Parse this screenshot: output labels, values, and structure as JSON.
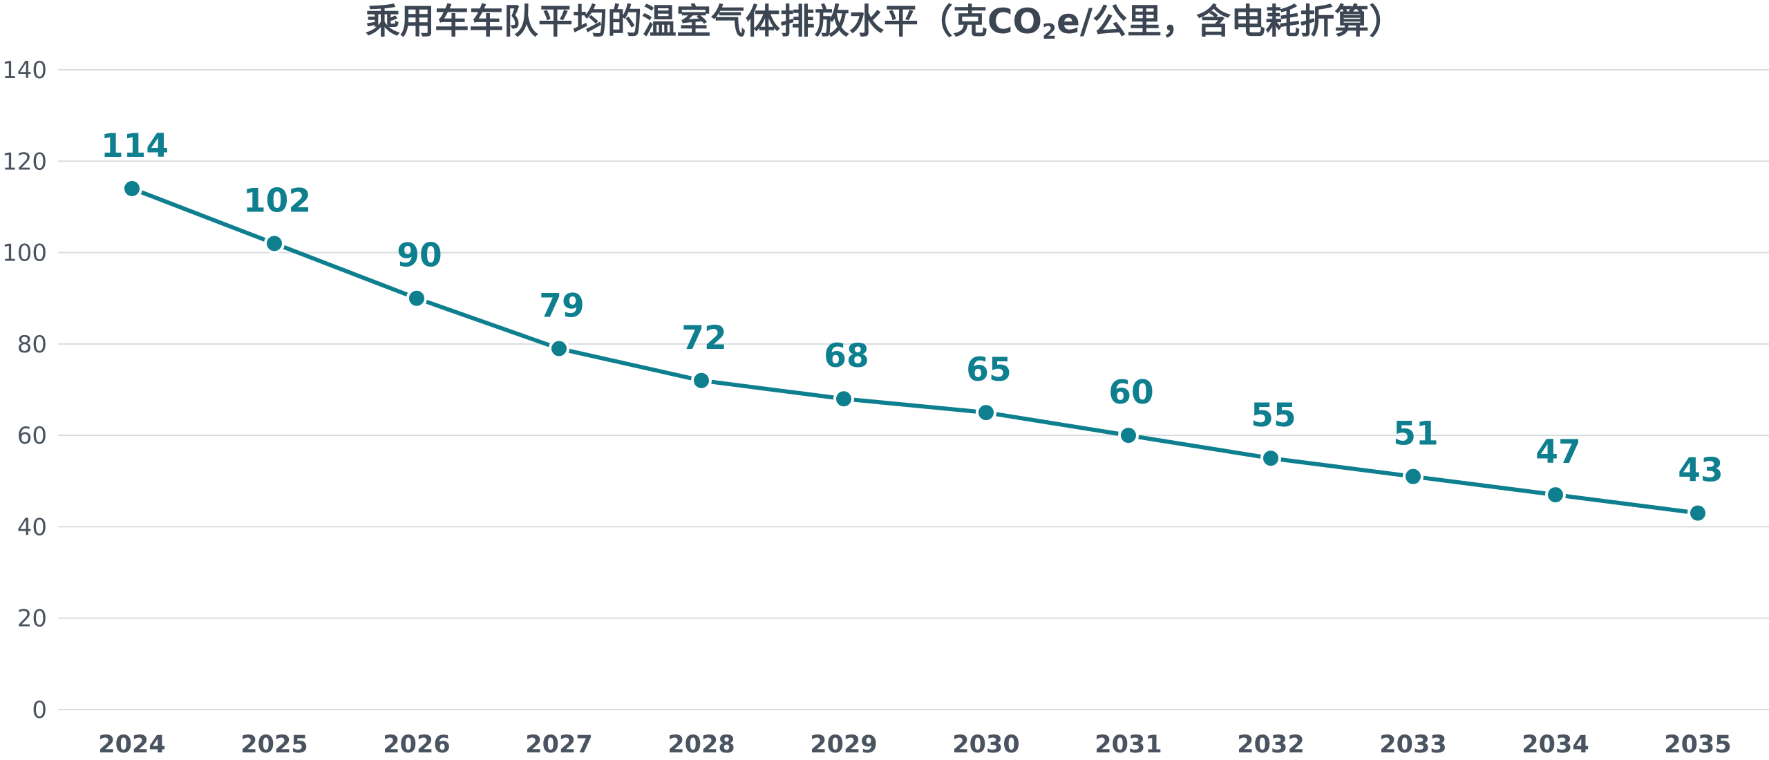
{
  "title": {
    "before": "乘用车车队平均的温室气体排放水平（克CO",
    "sub": "2",
    "after": "e/公里，含电耗折算）"
  },
  "chart_data": {
    "type": "line",
    "title": "乘用车车队平均的温室气体排放水平（克CO2e/公里，含电耗折算）",
    "xlabel": "",
    "ylabel": "",
    "x": [
      "2024",
      "2025",
      "2026",
      "2027",
      "2028",
      "2029",
      "2030",
      "2031",
      "2032",
      "2033",
      "2034",
      "2035"
    ],
    "series": [
      {
        "values": [
          114,
          102,
          90,
          79,
          72,
          68,
          65,
          60,
          55,
          51,
          47,
          43
        ],
        "color": "#0e7f8f"
      }
    ],
    "ylim": [
      0,
      140
    ],
    "yticks": [
      0,
      20,
      40,
      60,
      80,
      100,
      120,
      140
    ],
    "ytick_labels": [
      "0",
      "20",
      "40",
      "60",
      "80",
      "100",
      "120",
      "140"
    ],
    "grid": true,
    "legend": "none",
    "data_labels": true
  }
}
